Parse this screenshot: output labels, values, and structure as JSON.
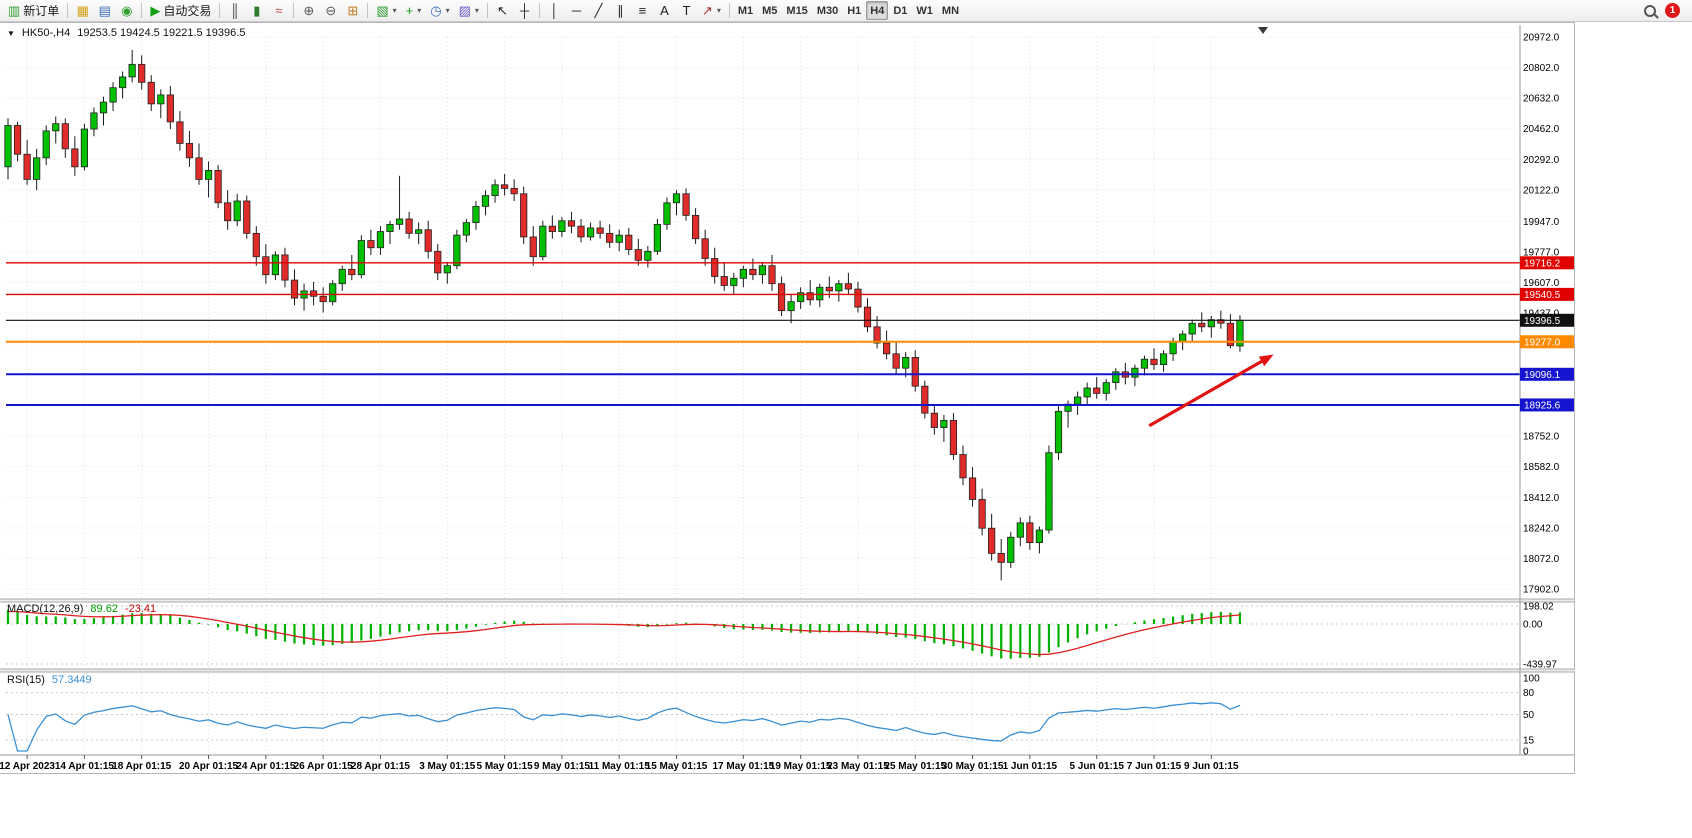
{
  "toolbar": {
    "notification_count": "1",
    "items": [
      {
        "kind": "btn",
        "name": "new-order-button",
        "glyph": "▥",
        "glyph_color": "#2f9e2f",
        "label": "新订单"
      },
      {
        "kind": "sep"
      },
      {
        "kind": "btn",
        "name": "market-watch-button",
        "glyph": "▦",
        "glyph_color": "#d4a017"
      },
      {
        "kind": "btn",
        "name": "data-window-button",
        "glyph": "▤",
        "glyph_color": "#3b6fb6"
      },
      {
        "kind": "btn",
        "name": "navigator-button",
        "glyph": "◉",
        "glyph_color": "#2f9e2f"
      },
      {
        "kind": "sep"
      },
      {
        "kind": "btn",
        "name": "auto-trading-button",
        "glyph": "▶",
        "glyph_color": "#12a012",
        "label": "自动交易"
      },
      {
        "kind": "sep"
      },
      {
        "kind": "btn",
        "name": "bar-chart-button",
        "glyph": "║",
        "glyph_color": "#444444"
      },
      {
        "kind": "btn",
        "name": "candlestick-chart-button",
        "glyph": "▮",
        "glyph_color": "#2d7d2d"
      },
      {
        "kind": "btn",
        "name": "line-chart-button",
        "glyph": "≈",
        "glyph_color": "#b24a4a"
      },
      {
        "kind": "sep"
      },
      {
        "kind": "btn",
        "name": "zoom-in-button",
        "glyph": "⊕",
        "glyph_color": "#5a5a5a"
      },
      {
        "kind": "btn",
        "name": "zoom-out-button",
        "glyph": "⊖",
        "glyph_color": "#5a5a5a"
      },
      {
        "kind": "btn",
        "name": "tile-windows-button",
        "glyph": "⊞",
        "glyph_color": "#c07820"
      },
      {
        "kind": "sep"
      },
      {
        "kind": "btn",
        "name": "new-chart-button",
        "glyph": "▧",
        "glyph_color": "#2f9e2f",
        "caret": true
      },
      {
        "kind": "btn",
        "name": "indicators-button",
        "glyph": "+",
        "glyph_color": "#12a012",
        "caret": true
      },
      {
        "kind": "btn",
        "name": "periods-button",
        "glyph": "◷",
        "glyph_color": "#3b6fb6",
        "caret": true
      },
      {
        "kind": "btn",
        "name": "templates-button",
        "glyph": "▨",
        "glyph_color": "#6a5acd",
        "caret": true
      },
      {
        "kind": "sep"
      },
      {
        "kind": "btn",
        "name": "cursor-button",
        "glyph": "↖",
        "glyph_color": "#222222"
      },
      {
        "kind": "btn",
        "name": "crosshair-button",
        "glyph": "┼",
        "glyph_color": "#222222"
      },
      {
        "kind": "sep"
      },
      {
        "kind": "btn",
        "name": "vertical-line-button",
        "glyph": "│",
        "glyph_color": "#222222"
      },
      {
        "kind": "btn",
        "name": "horizontal-line-button",
        "glyph": "─",
        "glyph_color": "#222222"
      },
      {
        "kind": "btn",
        "name": "trendline-button",
        "glyph": "╱",
        "glyph_color": "#222222"
      },
      {
        "kind": "btn",
        "name": "equidistant-channel-button",
        "glyph": "∥",
        "glyph_color": "#222222"
      },
      {
        "kind": "btn",
        "name": "fibonacci-button",
        "glyph": "≡",
        "glyph_color": "#222222"
      },
      {
        "kind": "btn",
        "name": "text-button",
        "glyph": "A",
        "glyph_color": "#222222"
      },
      {
        "kind": "btn",
        "name": "text-label-button",
        "glyph": "T",
        "glyph_color": "#222222"
      },
      {
        "kind": "btn",
        "name": "arrows-button",
        "glyph": "↗",
        "glyph_color": "#b03030",
        "caret": true
      },
      {
        "kind": "sep"
      },
      {
        "kind": "btn",
        "name": "timeframe-m1-button",
        "text": "M1"
      },
      {
        "kind": "btn",
        "name": "timeframe-m5-button",
        "text": "M5"
      },
      {
        "kind": "btn",
        "name": "timeframe-m15-button",
        "text": "M15"
      },
      {
        "kind": "btn",
        "name": "timeframe-m30-button",
        "text": "M30"
      },
      {
        "kind": "btn",
        "name": "timeframe-h1-button",
        "text": "H1"
      },
      {
        "kind": "btn",
        "name": "timeframe-h4-button",
        "text": "H4",
        "active": true
      },
      {
        "kind": "btn",
        "name": "timeframe-d1-button",
        "text": "D1"
      },
      {
        "kind": "btn",
        "name": "timeframe-w1-button",
        "text": "W1"
      },
      {
        "kind": "btn",
        "name": "timeframe-mn-button",
        "text": "MN"
      }
    ]
  },
  "chart": {
    "collapse_icon": "▼",
    "symbol_period": "HK50-,H4",
    "ohlc": "19253.5 19424.5 19221.5 19396.5"
  },
  "chart_data": {
    "type": "candlestick",
    "symbol": "HK50-",
    "timeframe": "H4",
    "ohlc_display": {
      "open": "19253.5",
      "high": "19424.5",
      "low": "19221.5",
      "close": "19396.5"
    },
    "ylim": [
      17902.0,
      20972.0
    ],
    "up_color": "#00c000",
    "down_color": "#e02b2b",
    "wick_color": "#1a1a1a",
    "y_ticks": [
      {
        "v": 20972.0,
        "t": "20972.0"
      },
      {
        "v": 20802.0,
        "t": "20802.0"
      },
      {
        "v": 20632.0,
        "t": "20632.0"
      },
      {
        "v": 20462.0,
        "t": "20462.0"
      },
      {
        "v": 20292.0,
        "t": "20292.0"
      },
      {
        "v": 20122.0,
        "t": "20122.0"
      },
      {
        "v": 19947.0,
        "t": "19947.0"
      },
      {
        "v": 19777.0,
        "t": "19777.0"
      },
      {
        "v": 19607.0,
        "t": "19607.0"
      },
      {
        "v": 19437.0,
        "t": "19437.0"
      },
      {
        "v": 19267.0,
        "t": null
      },
      {
        "v": 19097.0,
        "t": null
      },
      {
        "v": 18927.0,
        "t": null
      },
      {
        "v": 18752.0,
        "t": "18752.0"
      },
      {
        "v": 18582.0,
        "t": "18582.0"
      },
      {
        "v": 18412.0,
        "t": "18412.0"
      },
      {
        "v": 18242.0,
        "t": "18242.0"
      },
      {
        "v": 18072.0,
        "t": "18072.0"
      },
      {
        "v": 17902.0,
        "t": "17902.0"
      }
    ],
    "x_labels": [
      "12 Apr 2023",
      "14 Apr 01:15",
      "18 Apr 01:15",
      "20 Apr 01:15",
      "24 Apr 01:15",
      "26 Apr 01:15",
      "28 Apr 01:15",
      "3 May 01:15",
      "5 May 01:15",
      "9 May 01:15",
      "11 May 01:15",
      "15 May 01:15",
      "17 May 01:15",
      "19 May 01:15",
      "23 May 01:15",
      "25 May 01:15",
      "30 May 01:15",
      "1 Jun 01:15",
      "5 Jun 01:15",
      "7 Jun 01:15",
      "9 Jun 01:15"
    ],
    "x_label_indices": [
      2,
      8,
      14,
      21,
      27,
      33,
      39,
      46,
      52,
      58,
      64,
      70,
      77,
      83,
      89,
      95,
      101,
      107,
      114,
      120,
      126
    ],
    "hlines": [
      {
        "price": 19716.2,
        "color": "#e00000",
        "width": 1.4,
        "label": "19716.2"
      },
      {
        "price": 19540.5,
        "color": "#e00000",
        "width": 1.4,
        "label": "19540.5"
      },
      {
        "price": 19396.5,
        "color": "#101010",
        "width": 1.1,
        "label": "19396.5"
      },
      {
        "price": 19277.0,
        "color": "#ff8a00",
        "width": 2,
        "label": "19277.0"
      },
      {
        "price": 19096.1,
        "color": "#1515cf",
        "width": 2,
        "label": "19096.1"
      },
      {
        "price": 18925.6,
        "color": "#1515cf",
        "width": 2,
        "label": "18925.6"
      }
    ],
    "arrow": {
      "from_index": 119.5,
      "from_price": 18810,
      "to_index": 133,
      "to_price": 19195,
      "color": "#e01313"
    },
    "macd": {
      "name": "MACD(12,26,9)",
      "main_value": "89.62",
      "signal_value": "-23.41",
      "axis_max": 198.02,
      "axis_min": -439.97,
      "axis_ticks": [
        {
          "v": 198.02,
          "t": "198.02"
        },
        {
          "v": 0,
          "t": "0.00"
        },
        {
          "v": -439.97,
          "t": "-439.97"
        }
      ],
      "histogram_color": "#00b000",
      "signal_color": "#e02020"
    },
    "rsi": {
      "name": "RSI(15)",
      "value": "57.3449",
      "axis_ticks": [
        {
          "v": 100,
          "t": "100"
        },
        {
          "v": 80,
          "t": "80"
        },
        {
          "v": 50,
          "t": "50"
        },
        {
          "v": 15,
          "t": "15"
        },
        {
          "v": 0,
          "t": "0"
        }
      ],
      "levels": [
        80,
        50,
        15
      ],
      "line_color": "#3a8fd2"
    },
    "candles": [
      [
        20250,
        20520,
        20180,
        20480
      ],
      [
        20480,
        20500,
        20280,
        20320
      ],
      [
        20320,
        20400,
        20150,
        20180
      ],
      [
        20180,
        20350,
        20120,
        20300
      ],
      [
        20300,
        20480,
        20260,
        20450
      ],
      [
        20450,
        20530,
        20380,
        20490
      ],
      [
        20490,
        20520,
        20300,
        20350
      ],
      [
        20350,
        20420,
        20200,
        20250
      ],
      [
        20250,
        20490,
        20230,
        20460
      ],
      [
        20460,
        20580,
        20420,
        20550
      ],
      [
        20550,
        20640,
        20480,
        20610
      ],
      [
        20610,
        20720,
        20560,
        20690
      ],
      [
        20690,
        20780,
        20630,
        20750
      ],
      [
        20750,
        20900,
        20720,
        20820
      ],
      [
        20820,
        20870,
        20680,
        20720
      ],
      [
        20720,
        20760,
        20560,
        20600
      ],
      [
        20600,
        20680,
        20520,
        20650
      ],
      [
        20650,
        20700,
        20460,
        20500
      ],
      [
        20500,
        20560,
        20340,
        20380
      ],
      [
        20380,
        20450,
        20250,
        20300
      ],
      [
        20300,
        20380,
        20150,
        20180
      ],
      [
        20180,
        20280,
        20080,
        20230
      ],
      [
        20230,
        20260,
        20020,
        20050
      ],
      [
        20050,
        20120,
        19900,
        19950
      ],
      [
        19950,
        20100,
        19920,
        20060
      ],
      [
        20060,
        20090,
        19850,
        19880
      ],
      [
        19880,
        19920,
        19700,
        19750
      ],
      [
        19750,
        19820,
        19600,
        19650
      ],
      [
        19650,
        19780,
        19620,
        19760
      ],
      [
        19760,
        19800,
        19580,
        19620
      ],
      [
        19620,
        19680,
        19480,
        19520
      ],
      [
        19520,
        19600,
        19450,
        19560
      ],
      [
        19560,
        19610,
        19480,
        19530
      ],
      [
        19530,
        19580,
        19440,
        19500
      ],
      [
        19500,
        19620,
        19480,
        19600
      ],
      [
        19600,
        19700,
        19560,
        19680
      ],
      [
        19680,
        19760,
        19620,
        19650
      ],
      [
        19650,
        19870,
        19630,
        19840
      ],
      [
        19840,
        19900,
        19760,
        19800
      ],
      [
        19800,
        19920,
        19760,
        19890
      ],
      [
        19890,
        19950,
        19820,
        19930
      ],
      [
        19930,
        20200,
        19900,
        19960
      ],
      [
        19960,
        20000,
        19850,
        19880
      ],
      [
        19880,
        19940,
        19820,
        19900
      ],
      [
        19900,
        19950,
        19740,
        19780
      ],
      [
        19780,
        19820,
        19620,
        19660
      ],
      [
        19660,
        19720,
        19600,
        19700
      ],
      [
        19700,
        19900,
        19680,
        19870
      ],
      [
        19870,
        19960,
        19830,
        19940
      ],
      [
        19940,
        20060,
        19900,
        20030
      ],
      [
        20030,
        20120,
        19980,
        20090
      ],
      [
        20090,
        20180,
        20050,
        20150
      ],
      [
        20150,
        20210,
        20090,
        20130
      ],
      [
        20130,
        20180,
        20060,
        20100
      ],
      [
        20100,
        20140,
        19820,
        19860
      ],
      [
        19860,
        19920,
        19700,
        19750
      ],
      [
        19750,
        19950,
        19730,
        19920
      ],
      [
        19920,
        19980,
        19850,
        19890
      ],
      [
        19890,
        19970,
        19860,
        19950
      ],
      [
        19950,
        20000,
        19880,
        19920
      ],
      [
        19920,
        19960,
        19830,
        19860
      ],
      [
        19860,
        19940,
        19840,
        19910
      ],
      [
        19910,
        19950,
        19850,
        19880
      ],
      [
        19880,
        19930,
        19800,
        19830
      ],
      [
        19830,
        19900,
        19780,
        19870
      ],
      [
        19870,
        19910,
        19760,
        19790
      ],
      [
        19790,
        19850,
        19700,
        19730
      ],
      [
        19730,
        19810,
        19690,
        19780
      ],
      [
        19780,
        19960,
        19760,
        19930
      ],
      [
        19930,
        20080,
        19900,
        20050
      ],
      [
        20050,
        20120,
        19980,
        20100
      ],
      [
        20100,
        20130,
        19950,
        19980
      ],
      [
        19980,
        20020,
        19820,
        19850
      ],
      [
        19850,
        19900,
        19700,
        19740
      ],
      [
        19740,
        19800,
        19600,
        19640
      ],
      [
        19640,
        19720,
        19560,
        19590
      ],
      [
        19590,
        19660,
        19540,
        19630
      ],
      [
        19630,
        19700,
        19580,
        19680
      ],
      [
        19680,
        19740,
        19620,
        19650
      ],
      [
        19650,
        19720,
        19600,
        19700
      ],
      [
        19700,
        19760,
        19560,
        19600
      ],
      [
        19600,
        19640,
        19420,
        19450
      ],
      [
        19450,
        19540,
        19380,
        19500
      ],
      [
        19500,
        19580,
        19460,
        19550
      ],
      [
        19550,
        19620,
        19480,
        19510
      ],
      [
        19510,
        19600,
        19470,
        19580
      ],
      [
        19580,
        19640,
        19520,
        19560
      ],
      [
        19560,
        19620,
        19500,
        19600
      ],
      [
        19600,
        19660,
        19540,
        19570
      ],
      [
        19570,
        19610,
        19440,
        19470
      ],
      [
        19470,
        19520,
        19330,
        19360
      ],
      [
        19360,
        19420,
        19240,
        19270
      ],
      [
        19270,
        19340,
        19180,
        19210
      ],
      [
        19210,
        19280,
        19100,
        19130
      ],
      [
        19130,
        19220,
        19080,
        19190
      ],
      [
        19190,
        19230,
        19000,
        19030
      ],
      [
        19030,
        19060,
        18850,
        18880
      ],
      [
        18880,
        18930,
        18760,
        18800
      ],
      [
        18800,
        18870,
        18720,
        18840
      ],
      [
        18840,
        18880,
        18620,
        18650
      ],
      [
        18650,
        18700,
        18480,
        18520
      ],
      [
        18520,
        18580,
        18360,
        18400
      ],
      [
        18400,
        18460,
        18200,
        18240
      ],
      [
        18240,
        18320,
        18060,
        18100
      ],
      [
        18100,
        18180,
        17950,
        18050
      ],
      [
        18050,
        18220,
        18020,
        18190
      ],
      [
        18190,
        18300,
        18140,
        18270
      ],
      [
        18270,
        18310,
        18120,
        18160
      ],
      [
        18160,
        18250,
        18100,
        18230
      ],
      [
        18230,
        18700,
        18210,
        18660
      ],
      [
        18660,
        18920,
        18620,
        18890
      ],
      [
        18890,
        18950,
        18800,
        18930
      ],
      [
        18930,
        19000,
        18870,
        18970
      ],
      [
        18970,
        19050,
        18920,
        19020
      ],
      [
        19020,
        19080,
        18960,
        18990
      ],
      [
        18990,
        19070,
        18950,
        19050
      ],
      [
        19050,
        19130,
        19010,
        19110
      ],
      [
        19110,
        19160,
        19040,
        19080
      ],
      [
        19080,
        19150,
        19030,
        19130
      ],
      [
        19130,
        19200,
        19090,
        19180
      ],
      [
        19180,
        19240,
        19120,
        19150
      ],
      [
        19150,
        19230,
        19110,
        19210
      ],
      [
        19210,
        19300,
        19170,
        19280
      ],
      [
        19280,
        19340,
        19230,
        19320
      ],
      [
        19320,
        19400,
        19280,
        19380
      ],
      [
        19380,
        19440,
        19330,
        19360
      ],
      [
        19360,
        19420,
        19300,
        19400
      ],
      [
        19400,
        19450,
        19350,
        19380
      ],
      [
        19380,
        19430,
        19240,
        19255
      ],
      [
        19253.5,
        19424.5,
        19221.5,
        19396.5
      ]
    ]
  }
}
